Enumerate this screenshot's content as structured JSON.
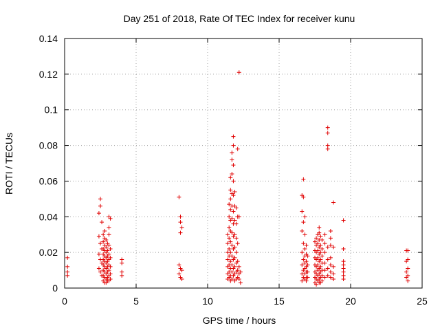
{
  "chart_data": {
    "type": "scatter",
    "title": "Day 251 of 2018, Rate Of TEC Index for receiver kunu",
    "xlabel": "GPS time / hours",
    "ylabel": "ROTI / TECUs",
    "xlim": [
      0,
      25
    ],
    "ylim": [
      0,
      0.14
    ],
    "x_ticks": [
      0,
      5,
      10,
      15,
      20,
      25
    ],
    "y_ticks": [
      0,
      0.02,
      0.04,
      0.06,
      0.08,
      0.1,
      0.12,
      0.14
    ],
    "x_tick_labels": [
      "0",
      "5",
      "10",
      "15",
      "20",
      "25"
    ],
    "y_tick_labels": [
      "0",
      "0.02",
      "0.04",
      "0.06",
      "0.08",
      "0.1",
      "0.12",
      "0.14"
    ],
    "grid": true,
    "marker": "plus",
    "series": [
      {
        "color": "#e00000",
        "points": [
          [
            0.2,
            0.017
          ],
          [
            0.2,
            0.012
          ],
          [
            0.2,
            0.009
          ],
          [
            0.2,
            0.007
          ],
          [
            2.4,
            0.042
          ],
          [
            2.5,
            0.05
          ],
          [
            2.5,
            0.046
          ],
          [
            2.6,
            0.037
          ],
          [
            2.4,
            0.029
          ],
          [
            2.5,
            0.025
          ],
          [
            2.6,
            0.022
          ],
          [
            2.4,
            0.019
          ],
          [
            2.5,
            0.016
          ],
          [
            2.6,
            0.014
          ],
          [
            2.4,
            0.011
          ],
          [
            2.5,
            0.009
          ],
          [
            2.6,
            0.007
          ],
          [
            2.7,
            0.03
          ],
          [
            2.7,
            0.026
          ],
          [
            2.7,
            0.022
          ],
          [
            2.7,
            0.019
          ],
          [
            2.7,
            0.016
          ],
          [
            2.7,
            0.013
          ],
          [
            2.7,
            0.01
          ],
          [
            2.7,
            0.007
          ],
          [
            2.7,
            0.004
          ],
          [
            2.8,
            0.032
          ],
          [
            2.8,
            0.028
          ],
          [
            2.8,
            0.024
          ],
          [
            2.8,
            0.021
          ],
          [
            2.8,
            0.018
          ],
          [
            2.8,
            0.015
          ],
          [
            2.8,
            0.012
          ],
          [
            2.8,
            0.009
          ],
          [
            2.8,
            0.006
          ],
          [
            2.8,
            0.003
          ],
          [
            2.9,
            0.027
          ],
          [
            2.9,
            0.023
          ],
          [
            2.9,
            0.02
          ],
          [
            2.9,
            0.017
          ],
          [
            2.9,
            0.014
          ],
          [
            2.9,
            0.011
          ],
          [
            2.9,
            0.008
          ],
          [
            2.9,
            0.005
          ],
          [
            2.9,
            0.003
          ],
          [
            3.0,
            0.025
          ],
          [
            3.0,
            0.021
          ],
          [
            3.0,
            0.018
          ],
          [
            3.0,
            0.015
          ],
          [
            3.0,
            0.012
          ],
          [
            3.0,
            0.009
          ],
          [
            3.0,
            0.006
          ],
          [
            3.0,
            0.004
          ],
          [
            3.1,
            0.04
          ],
          [
            3.1,
            0.034
          ],
          [
            3.1,
            0.03
          ],
          [
            3.1,
            0.024
          ],
          [
            3.1,
            0.019
          ],
          [
            3.1,
            0.016
          ],
          [
            3.1,
            0.013
          ],
          [
            3.1,
            0.01
          ],
          [
            3.1,
            0.007
          ],
          [
            3.1,
            0.004
          ],
          [
            3.2,
            0.039
          ],
          [
            3.2,
            0.022
          ],
          [
            3.2,
            0.017
          ],
          [
            3.2,
            0.012
          ],
          [
            3.2,
            0.008
          ],
          [
            3.2,
            0.005
          ],
          [
            4.0,
            0.016
          ],
          [
            4.0,
            0.014
          ],
          [
            4.0,
            0.009
          ],
          [
            4.0,
            0.007
          ],
          [
            8.0,
            0.051
          ],
          [
            8.1,
            0.04
          ],
          [
            8.1,
            0.037
          ],
          [
            8.2,
            0.034
          ],
          [
            8.1,
            0.031
          ],
          [
            8.0,
            0.013
          ],
          [
            8.1,
            0.011
          ],
          [
            8.2,
            0.01
          ],
          [
            8.0,
            0.008
          ],
          [
            8.1,
            0.006
          ],
          [
            8.2,
            0.005
          ],
          [
            11.4,
            0.03
          ],
          [
            11.4,
            0.025
          ],
          [
            11.4,
            0.02
          ],
          [
            11.4,
            0.016
          ],
          [
            11.4,
            0.012
          ],
          [
            11.4,
            0.008
          ],
          [
            11.4,
            0.005
          ],
          [
            11.5,
            0.047
          ],
          [
            11.5,
            0.04
          ],
          [
            11.5,
            0.034
          ],
          [
            11.5,
            0.028
          ],
          [
            11.5,
            0.022
          ],
          [
            11.5,
            0.018
          ],
          [
            11.5,
            0.013
          ],
          [
            11.5,
            0.009
          ],
          [
            11.5,
            0.006
          ],
          [
            11.6,
            0.062
          ],
          [
            11.6,
            0.055
          ],
          [
            11.6,
            0.05
          ],
          [
            11.6,
            0.044
          ],
          [
            11.6,
            0.038
          ],
          [
            11.6,
            0.032
          ],
          [
            11.6,
            0.026
          ],
          [
            11.6,
            0.02
          ],
          [
            11.6,
            0.015
          ],
          [
            11.6,
            0.011
          ],
          [
            11.6,
            0.007
          ],
          [
            11.6,
            0.004
          ],
          [
            11.7,
            0.076
          ],
          [
            11.7,
            0.072
          ],
          [
            11.7,
            0.064
          ],
          [
            11.7,
            0.053
          ],
          [
            11.7,
            0.046
          ],
          [
            11.7,
            0.039
          ],
          [
            11.7,
            0.031
          ],
          [
            11.7,
            0.024
          ],
          [
            11.7,
            0.018
          ],
          [
            11.7,
            0.013
          ],
          [
            11.7,
            0.009
          ],
          [
            11.7,
            0.005
          ],
          [
            11.8,
            0.085
          ],
          [
            11.8,
            0.08
          ],
          [
            11.8,
            0.069
          ],
          [
            11.8,
            0.06
          ],
          [
            11.8,
            0.052
          ],
          [
            11.8,
            0.043
          ],
          [
            11.8,
            0.036
          ],
          [
            11.8,
            0.029
          ],
          [
            11.8,
            0.022
          ],
          [
            11.8,
            0.016
          ],
          [
            11.8,
            0.011
          ],
          [
            11.8,
            0.007
          ],
          [
            11.9,
            0.054
          ],
          [
            11.9,
            0.046
          ],
          [
            11.9,
            0.038
          ],
          [
            11.9,
            0.03
          ],
          [
            11.9,
            0.023
          ],
          [
            11.9,
            0.017
          ],
          [
            11.9,
            0.012
          ],
          [
            11.9,
            0.008
          ],
          [
            11.9,
            0.004
          ],
          [
            12.0,
            0.045
          ],
          [
            12.0,
            0.036
          ],
          [
            12.0,
            0.028
          ],
          [
            12.0,
            0.02
          ],
          [
            12.0,
            0.014
          ],
          [
            12.0,
            0.009
          ],
          [
            12.0,
            0.005
          ],
          [
            12.1,
            0.078
          ],
          [
            12.1,
            0.04
          ],
          [
            12.1,
            0.025
          ],
          [
            12.1,
            0.015
          ],
          [
            12.1,
            0.01
          ],
          [
            12.1,
            0.006
          ],
          [
            12.2,
            0.121
          ],
          [
            12.2,
            0.04
          ],
          [
            12.2,
            0.012
          ],
          [
            12.2,
            0.008
          ],
          [
            12.2,
            0.005
          ],
          [
            12.3,
            0.009
          ],
          [
            12.3,
            0.003
          ],
          [
            16.6,
            0.052
          ],
          [
            16.7,
            0.061
          ],
          [
            16.7,
            0.051
          ],
          [
            16.6,
            0.043
          ],
          [
            16.7,
            0.037
          ],
          [
            16.6,
            0.032
          ],
          [
            16.7,
            0.025
          ],
          [
            16.6,
            0.02
          ],
          [
            16.7,
            0.016
          ],
          [
            16.6,
            0.013
          ],
          [
            16.7,
            0.01
          ],
          [
            16.6,
            0.008
          ],
          [
            16.7,
            0.006
          ],
          [
            16.6,
            0.004
          ],
          [
            16.8,
            0.04
          ],
          [
            16.8,
            0.03
          ],
          [
            16.8,
            0.022
          ],
          [
            16.8,
            0.018
          ],
          [
            16.8,
            0.014
          ],
          [
            16.8,
            0.011
          ],
          [
            16.8,
            0.008
          ],
          [
            16.8,
            0.005
          ],
          [
            16.9,
            0.024
          ],
          [
            16.9,
            0.019
          ],
          [
            16.9,
            0.015
          ],
          [
            16.9,
            0.012
          ],
          [
            16.9,
            0.009
          ],
          [
            16.9,
            0.006
          ],
          [
            16.9,
            0.004
          ],
          [
            17.0,
            0.018
          ],
          [
            17.0,
            0.013
          ],
          [
            17.0,
            0.009
          ],
          [
            17.0,
            0.006
          ],
          [
            17.5,
            0.026
          ],
          [
            17.5,
            0.021
          ],
          [
            17.5,
            0.017
          ],
          [
            17.5,
            0.013
          ],
          [
            17.5,
            0.009
          ],
          [
            17.5,
            0.006
          ],
          [
            17.5,
            0.003
          ],
          [
            17.6,
            0.028
          ],
          [
            17.6,
            0.024
          ],
          [
            17.6,
            0.02
          ],
          [
            17.6,
            0.016
          ],
          [
            17.6,
            0.012
          ],
          [
            17.6,
            0.008
          ],
          [
            17.6,
            0.005
          ],
          [
            17.6,
            0.002
          ],
          [
            17.7,
            0.03
          ],
          [
            17.7,
            0.025
          ],
          [
            17.7,
            0.021
          ],
          [
            17.7,
            0.017
          ],
          [
            17.7,
            0.013
          ],
          [
            17.7,
            0.01
          ],
          [
            17.7,
            0.007
          ],
          [
            17.7,
            0.004
          ],
          [
            17.8,
            0.034
          ],
          [
            17.8,
            0.031
          ],
          [
            17.8,
            0.027
          ],
          [
            17.8,
            0.023
          ],
          [
            17.8,
            0.019
          ],
          [
            17.8,
            0.015
          ],
          [
            17.8,
            0.011
          ],
          [
            17.8,
            0.008
          ],
          [
            17.8,
            0.005
          ],
          [
            17.8,
            0.003
          ],
          [
            17.9,
            0.029
          ],
          [
            17.9,
            0.024
          ],
          [
            17.9,
            0.02
          ],
          [
            17.9,
            0.016
          ],
          [
            17.9,
            0.012
          ],
          [
            17.9,
            0.009
          ],
          [
            17.9,
            0.006
          ],
          [
            17.9,
            0.003
          ],
          [
            18.0,
            0.027
          ],
          [
            18.0,
            0.022
          ],
          [
            18.0,
            0.018
          ],
          [
            18.0,
            0.014
          ],
          [
            18.0,
            0.01
          ],
          [
            18.0,
            0.007
          ],
          [
            18.0,
            0.004
          ],
          [
            18.2,
            0.03
          ],
          [
            18.2,
            0.025
          ],
          [
            18.2,
            0.02
          ],
          [
            18.2,
            0.014
          ],
          [
            18.2,
            0.01
          ],
          [
            18.2,
            0.006
          ],
          [
            18.4,
            0.09
          ],
          [
            18.4,
            0.087
          ],
          [
            18.4,
            0.08
          ],
          [
            18.4,
            0.078
          ],
          [
            18.4,
            0.023
          ],
          [
            18.4,
            0.016
          ],
          [
            18.4,
            0.011
          ],
          [
            18.4,
            0.007
          ],
          [
            18.6,
            0.032
          ],
          [
            18.6,
            0.028
          ],
          [
            18.6,
            0.024
          ],
          [
            18.6,
            0.017
          ],
          [
            18.6,
            0.013
          ],
          [
            18.6,
            0.009
          ],
          [
            18.6,
            0.006
          ],
          [
            18.8,
            0.048
          ],
          [
            18.8,
            0.023
          ],
          [
            18.8,
            0.012
          ],
          [
            18.8,
            0.008
          ],
          [
            18.8,
            0.005
          ],
          [
            19.5,
            0.038
          ],
          [
            19.5,
            0.022
          ],
          [
            19.5,
            0.015
          ],
          [
            19.5,
            0.013
          ],
          [
            19.5,
            0.011
          ],
          [
            19.5,
            0.009
          ],
          [
            19.5,
            0.007
          ],
          [
            19.5,
            0.005
          ],
          [
            23.9,
            0.021
          ],
          [
            24.0,
            0.021
          ],
          [
            24.0,
            0.016
          ],
          [
            23.9,
            0.015
          ],
          [
            24.0,
            0.011
          ],
          [
            23.9,
            0.009
          ],
          [
            24.0,
            0.007
          ],
          [
            23.9,
            0.006
          ],
          [
            24.0,
            0.004
          ]
        ]
      }
    ]
  }
}
